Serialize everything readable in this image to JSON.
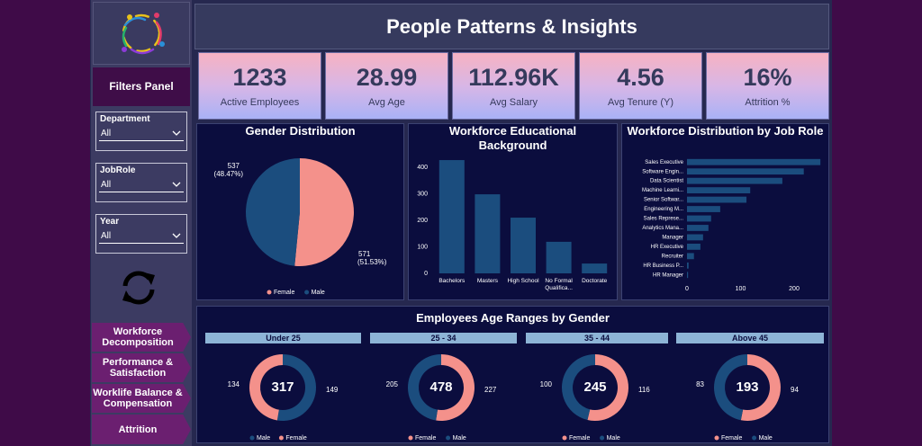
{
  "header": {
    "title": "People Patterns & Insights"
  },
  "sidebar": {
    "filters_title": "Filters Panel",
    "filters": [
      {
        "label": "Department",
        "value": "All"
      },
      {
        "label": "JobRole",
        "value": "All"
      },
      {
        "label": "Year",
        "value": "All"
      }
    ],
    "nav": [
      "Workforce Decomposition",
      "Performance & Satisfaction",
      "Worklife Balance & Compensation",
      "Attrition"
    ]
  },
  "kpis": [
    {
      "value": "1233",
      "label": "Active Employees"
    },
    {
      "value": "28.99",
      "label": "Avg Age"
    },
    {
      "value": "112.96K",
      "label": "Avg Salary"
    },
    {
      "value": "4.56",
      "label": "Avg Tenure (Y)"
    },
    {
      "value": "16%",
      "label": "Attrition %"
    }
  ],
  "age_panel": {
    "title": "Employees Age Ranges by Gender"
  },
  "chart_data": [
    {
      "type": "pie",
      "title": "Gender Distribution",
      "categories": [
        "Female",
        "Male"
      ],
      "values": [
        571,
        537
      ],
      "value_labels": [
        "571",
        "537"
      ],
      "percent_labels": [
        "(51.53%)",
        "(48.47%)"
      ],
      "colors": [
        "#f4918b",
        "#1b4d7e"
      ]
    },
    {
      "type": "bar",
      "title": "Workforce Educational Background",
      "categories": [
        "Bachelors",
        "Masters",
        "High School",
        "No Formal Qualifica...",
        "Doctorate"
      ],
      "values": [
        427,
        298,
        210,
        119,
        37
      ],
      "color": "#1b4d7e",
      "ylim": [
        0,
        440
      ],
      "yticks": [
        0,
        100,
        200,
        300,
        400
      ]
    },
    {
      "type": "hbar",
      "title": "Workforce Distribution by Job Role",
      "categories": [
        "Sales Executive",
        "Software Engin...",
        "Data Scientist",
        "Machine Learni...",
        "Senior Softwar...",
        "Engineering M...",
        "Sales Represe...",
        "Analytics Mana...",
        "Manager",
        "HR Executive",
        "Recruiter",
        "HR Business P...",
        "HR Manager"
      ],
      "values": [
        249,
        218,
        178,
        118,
        111,
        62,
        45,
        40,
        30,
        25,
        13,
        3,
        2
      ],
      "color": "#1b4d7e",
      "xlim": [
        0,
        250
      ],
      "xticks": [
        0,
        100,
        200
      ]
    },
    {
      "type": "donut",
      "title": "Under 25",
      "total": 317,
      "categories": [
        "Male",
        "Female"
      ],
      "values": [
        149,
        134
      ],
      "colors": [
        "#1b4d7e",
        "#f4918b"
      ]
    },
    {
      "type": "donut",
      "title": "25 - 34",
      "total": 478,
      "categories": [
        "Female",
        "Male"
      ],
      "values": [
        227,
        205
      ],
      "colors": [
        "#f4918b",
        "#1b4d7e"
      ]
    },
    {
      "type": "donut",
      "title": "35 - 44",
      "total": 245,
      "categories": [
        "Female",
        "Male"
      ],
      "values": [
        116,
        100
      ],
      "colors": [
        "#f4918b",
        "#1b4d7e"
      ]
    },
    {
      "type": "donut",
      "title": "Above 45",
      "total": 193,
      "categories": [
        "Female",
        "Male"
      ],
      "values": [
        94,
        83
      ],
      "colors": [
        "#f4918b",
        "#1b4d7e"
      ]
    }
  ]
}
